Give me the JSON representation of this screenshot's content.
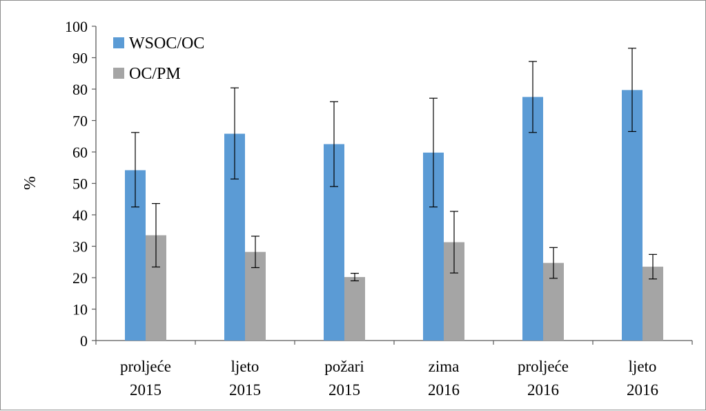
{
  "chart_data": {
    "type": "bar",
    "title": "",
    "xlabel": "",
    "ylabel": "%",
    "ylim": [
      0,
      100
    ],
    "yticks": [
      0,
      10,
      20,
      30,
      40,
      50,
      60,
      70,
      80,
      90,
      100
    ],
    "grid": false,
    "legend_position": "top-left",
    "categories": [
      [
        "proljeće",
        "2015"
      ],
      [
        "ljeto",
        "2015"
      ],
      [
        "požari",
        "2015"
      ],
      [
        "zima",
        "2016"
      ],
      [
        "proljeće",
        "2016"
      ],
      [
        "ljeto",
        "2016"
      ]
    ],
    "series": [
      {
        "name": "WSOC/OC",
        "color": "#5b9bd5",
        "values": [
          54.2,
          65.8,
          62.5,
          59.8,
          77.5,
          79.7
        ],
        "error": [
          [
            42.5,
            66.2
          ],
          [
            51.4,
            80.4
          ],
          [
            49.0,
            76.0
          ],
          [
            42.5,
            77.1
          ],
          [
            66.2,
            88.8
          ],
          [
            66.5,
            93.0
          ]
        ]
      },
      {
        "name": "OC/PM",
        "color": "#a5a5a5",
        "values": [
          33.5,
          28.2,
          20.2,
          31.3,
          24.7,
          23.5
        ],
        "error": [
          [
            23.4,
            43.6
          ],
          [
            23.2,
            33.2
          ],
          [
            19.0,
            21.4
          ],
          [
            21.5,
            41.1
          ],
          [
            19.8,
            29.6
          ],
          [
            19.6,
            27.4
          ]
        ]
      }
    ]
  }
}
